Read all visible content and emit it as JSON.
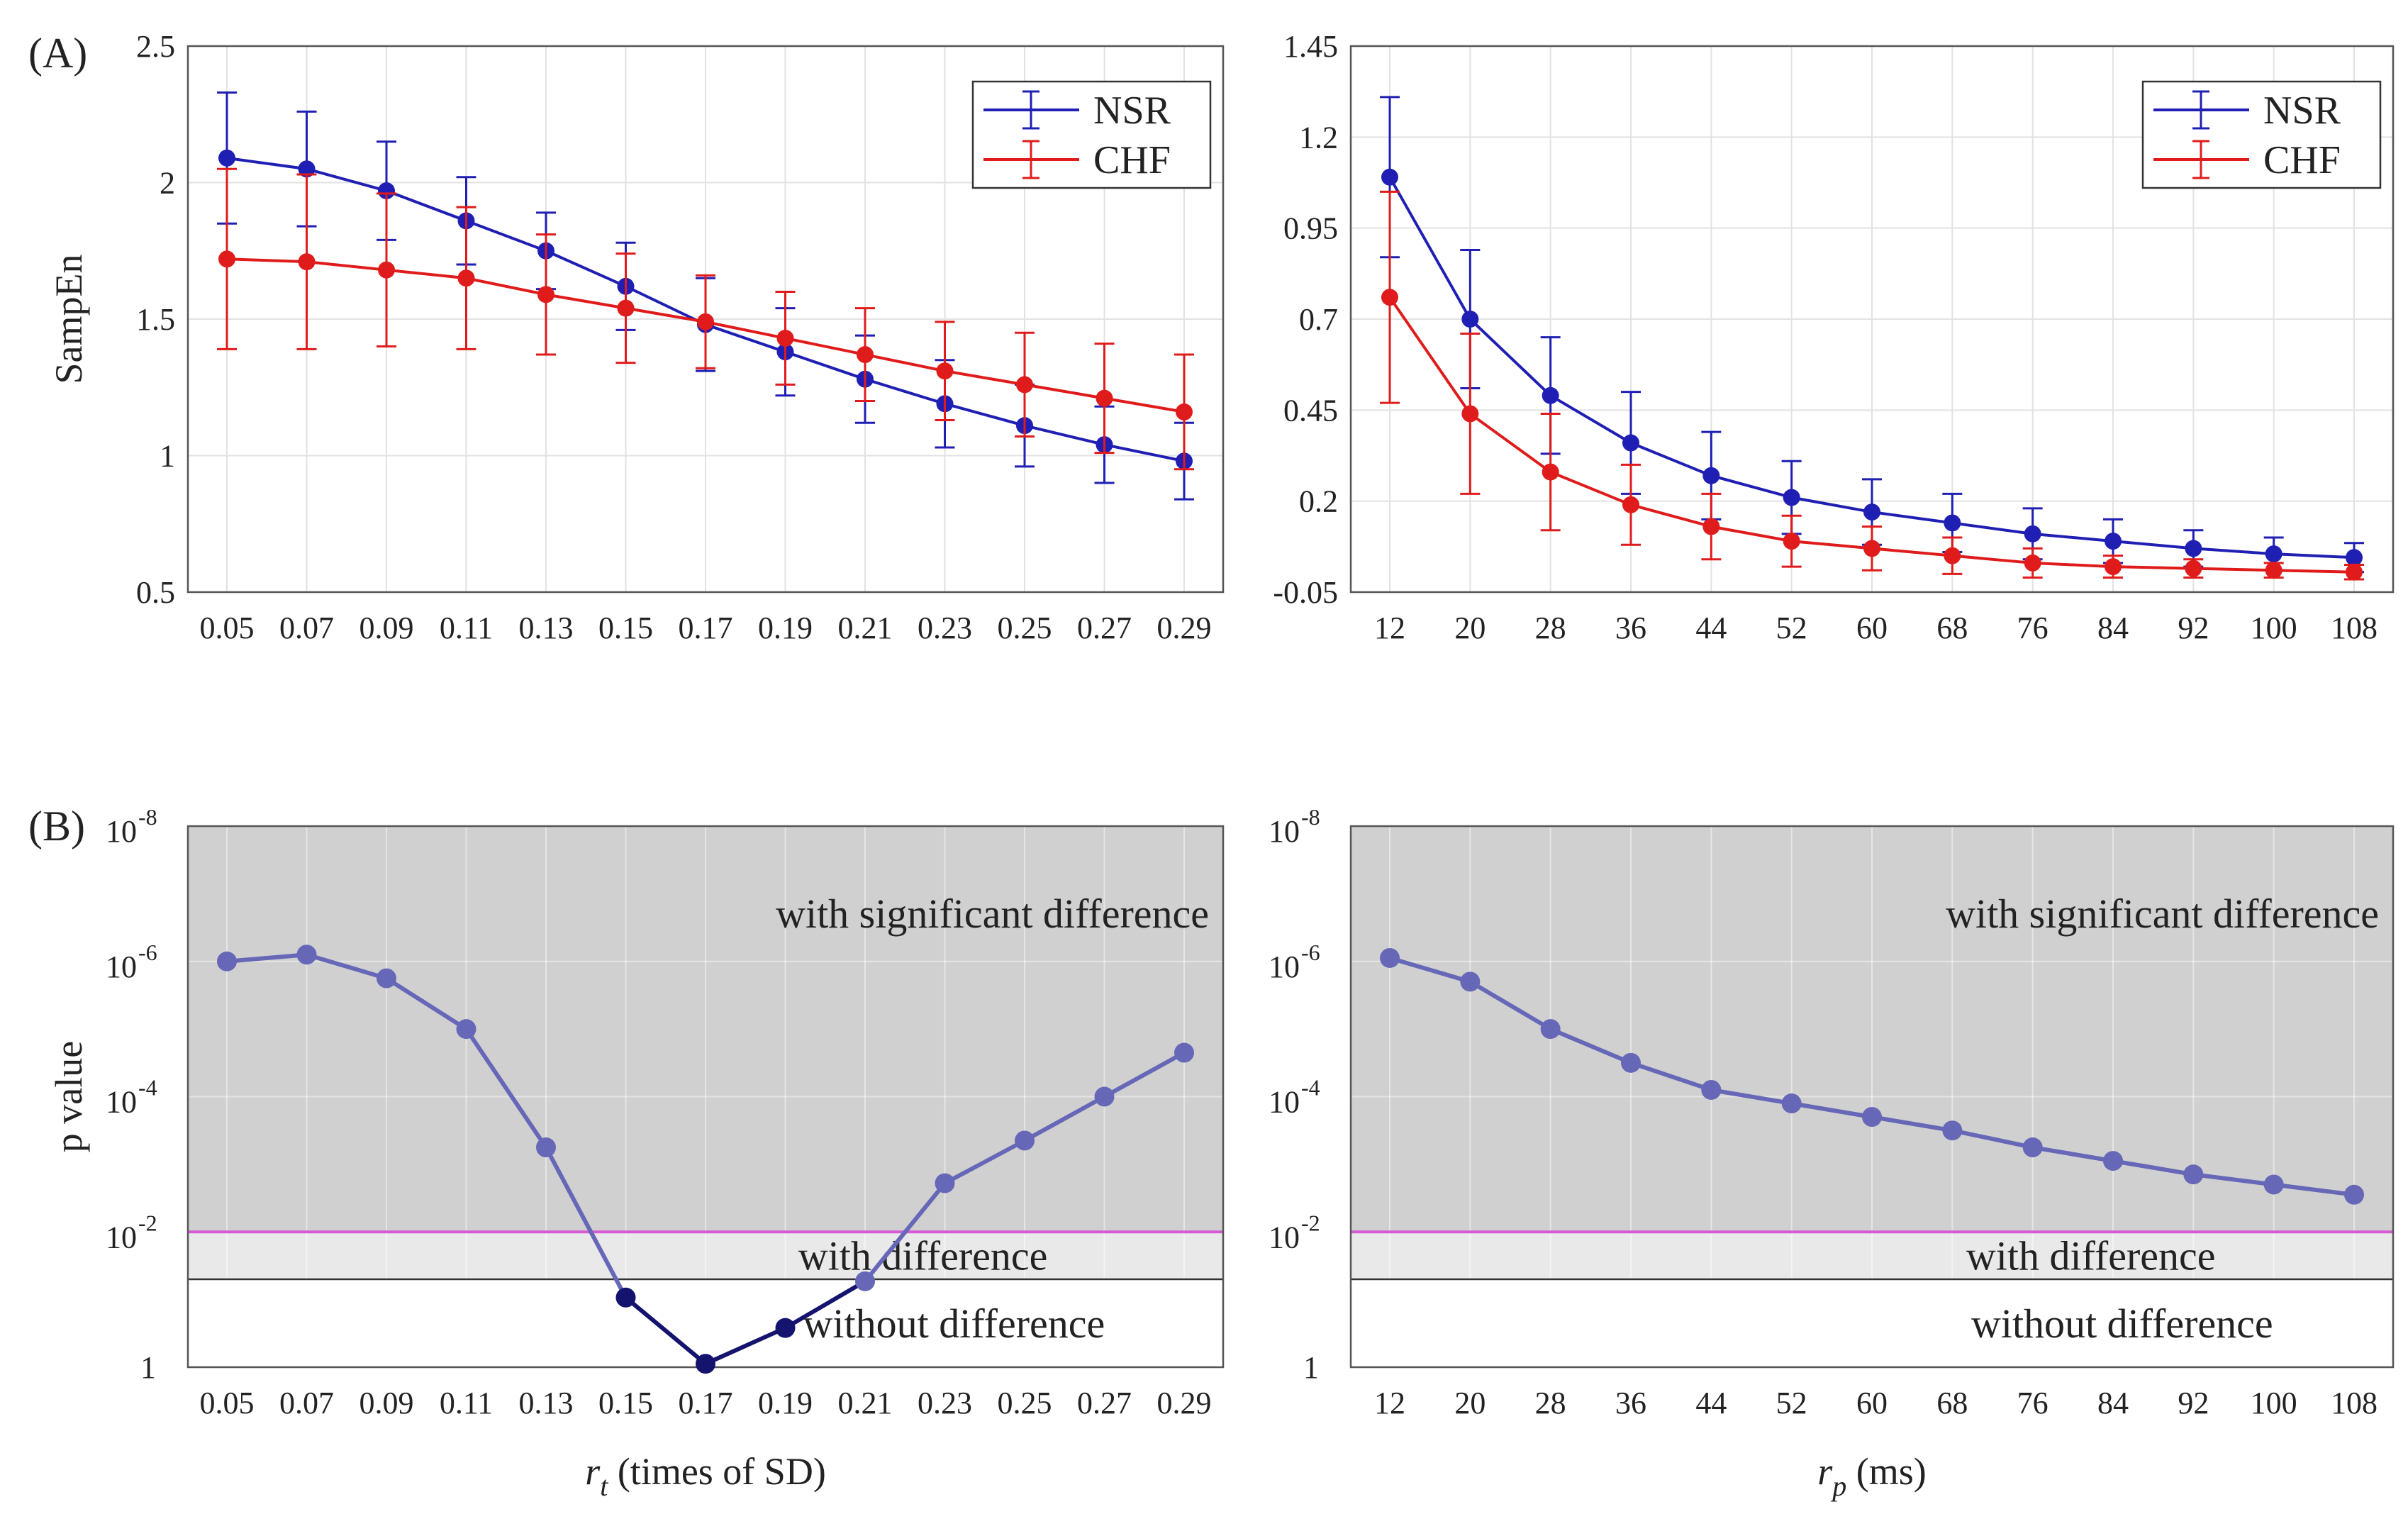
{
  "panel_labels": {
    "a": "(A)",
    "b": "(B)"
  },
  "legend": {
    "nsr": "NSR",
    "chf": "CHF"
  },
  "colors": {
    "nsr": "#1f1fb4",
    "chf": "#e01b1b",
    "p_line": "#6767b8",
    "p_line_dark": "#14146e",
    "sig_fill": "#d0d0d0",
    "diff_fill": "#e9e9e9",
    "threshold": "#d65ad6"
  },
  "regions": {
    "significant": "with significant  difference",
    "difference": "with difference",
    "none": "without difference"
  },
  "chart_data": [
    {
      "type": "line",
      "id": "A-left",
      "title": "",
      "ylabel": "SampEn",
      "xlabel": "",
      "categories": [
        "0.05",
        "0.07",
        "0.09",
        "0.11",
        "0.13",
        "0.15",
        "0.17",
        "0.19",
        "0.21",
        "0.23",
        "0.25",
        "0.27",
        "0.29"
      ],
      "ylim": [
        0.5,
        2.5
      ],
      "yticks": [
        "0.5",
        "1",
        "1.5",
        "2",
        "2.5"
      ],
      "ytick_values": [
        0.5,
        1,
        1.5,
        2,
        2.5
      ],
      "legend_position": "top-right",
      "series": [
        {
          "name": "NSR",
          "values": [
            2.09,
            2.05,
            1.97,
            1.86,
            1.75,
            1.62,
            1.48,
            1.38,
            1.28,
            1.19,
            1.11,
            1.04,
            0.98
          ],
          "errors": [
            0.24,
            0.21,
            0.18,
            0.16,
            0.14,
            0.16,
            0.17,
            0.16,
            0.16,
            0.16,
            0.15,
            0.14,
            0.14
          ]
        },
        {
          "name": "CHF",
          "values": [
            1.72,
            1.71,
            1.68,
            1.65,
            1.59,
            1.54,
            1.49,
            1.43,
            1.37,
            1.31,
            1.26,
            1.21,
            1.16
          ],
          "errors": [
            0.33,
            0.32,
            0.28,
            0.26,
            0.22,
            0.2,
            0.17,
            0.17,
            0.17,
            0.18,
            0.19,
            0.2,
            0.21
          ]
        }
      ]
    },
    {
      "type": "line",
      "id": "A-right",
      "title": "",
      "ylabel": "",
      "xlabel": "",
      "categories": [
        "12",
        "20",
        "28",
        "36",
        "44",
        "52",
        "60",
        "68",
        "76",
        "84",
        "92",
        "100",
        "108"
      ],
      "ylim": [
        -0.05,
        1.45
      ],
      "yticks": [
        "-0.05",
        "0.2",
        "0.45",
        "0.7",
        "0.95",
        "1.2",
        "1.45"
      ],
      "ytick_values": [
        -0.05,
        0.2,
        0.45,
        0.7,
        0.95,
        1.2,
        1.45
      ],
      "legend_position": "top-right",
      "series": [
        {
          "name": "NSR",
          "values": [
            1.09,
            0.7,
            0.49,
            0.36,
            0.27,
            0.21,
            0.17,
            0.14,
            0.11,
            0.09,
            0.07,
            0.055,
            0.045
          ],
          "errors": [
            0.22,
            0.19,
            0.16,
            0.14,
            0.12,
            0.1,
            0.09,
            0.08,
            0.07,
            0.06,
            0.05,
            0.045,
            0.04
          ]
        },
        {
          "name": "CHF",
          "values": [
            0.76,
            0.44,
            0.28,
            0.19,
            0.13,
            0.09,
            0.07,
            0.05,
            0.03,
            0.02,
            0.015,
            0.01,
            0.005
          ],
          "errors": [
            0.29,
            0.22,
            0.16,
            0.11,
            0.09,
            0.07,
            0.06,
            0.05,
            0.04,
            0.03,
            0.025,
            0.02,
            0.02
          ]
        }
      ]
    },
    {
      "type": "line",
      "id": "B-left",
      "title": "",
      "ylabel": "p value",
      "xlabel_main": "r",
      "xlabel_sub": "t",
      "xlabel_rest": " (times of SD)",
      "categories": [
        "0.05",
        "0.07",
        "0.09",
        "0.11",
        "0.13",
        "0.15",
        "0.17",
        "0.19",
        "0.21",
        "0.23",
        "0.25",
        "0.27",
        "0.29"
      ],
      "yscale": "log",
      "y_log10_range": [
        -8,
        0
      ],
      "yticks": [
        {
          "base": "10",
          "exp": "-8",
          "log": -8
        },
        {
          "base": "10",
          "exp": "-6",
          "log": -6
        },
        {
          "base": "10",
          "exp": "-4",
          "log": -4
        },
        {
          "base": "10",
          "exp": "-2",
          "log": -2
        },
        {
          "base": "1",
          "exp": "",
          "log": 0
        }
      ],
      "thresholds_log10": {
        "significant": -2,
        "difference": -1.3
      },
      "series": [
        {
          "name": "p value",
          "log10_p": [
            -6.0,
            -6.1,
            -5.75,
            -5.0,
            -3.25,
            -1.03,
            -0.05,
            -0.58,
            -1.27,
            -2.72,
            -3.35,
            -4.0,
            -4.65
          ]
        }
      ]
    },
    {
      "type": "line",
      "id": "B-right",
      "title": "",
      "ylabel": "",
      "xlabel_main": "r",
      "xlabel_sub": "p",
      "xlabel_rest": " (ms)",
      "categories": [
        "12",
        "20",
        "28",
        "36",
        "44",
        "52",
        "60",
        "68",
        "76",
        "84",
        "92",
        "100",
        "108"
      ],
      "yscale": "log",
      "y_log10_range": [
        -8,
        0
      ],
      "yticks": [
        {
          "base": "10",
          "exp": "-8",
          "log": -8
        },
        {
          "base": "10",
          "exp": "-6",
          "log": -6
        },
        {
          "base": "10",
          "exp": "-4",
          "log": -4
        },
        {
          "base": "10",
          "exp": "-2",
          "log": -2
        },
        {
          "base": "1",
          "exp": "",
          "log": 0
        }
      ],
      "thresholds_log10": {
        "significant": -2,
        "difference": -1.3
      },
      "series": [
        {
          "name": "p value",
          "log10_p": [
            -6.05,
            -5.7,
            -5.0,
            -4.5,
            -4.1,
            -3.9,
            -3.7,
            -3.5,
            -3.25,
            -3.05,
            -2.85,
            -2.7,
            -2.55
          ]
        }
      ]
    }
  ]
}
